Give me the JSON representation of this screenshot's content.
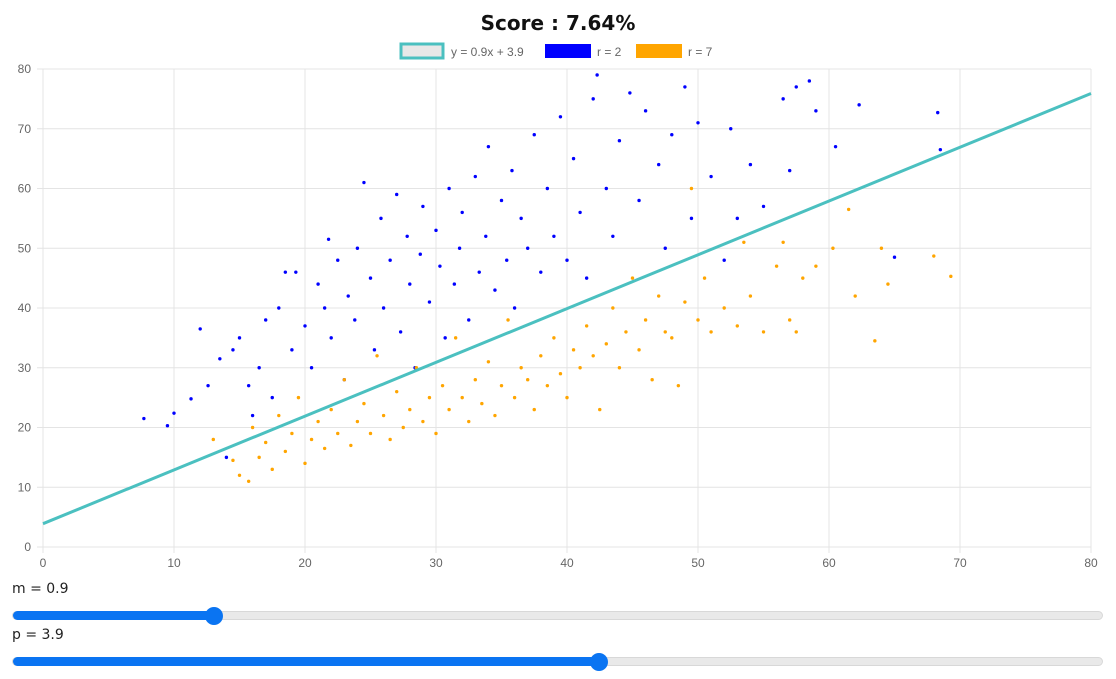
{
  "title": "Score : 7.64%",
  "chart_data": {
    "type": "scatter",
    "title": "Score : 7.64%",
    "xlim": [
      0,
      80
    ],
    "ylim": [
      0,
      80
    ],
    "xticks": [
      0,
      10,
      20,
      30,
      40,
      50,
      60,
      70,
      80
    ],
    "yticks": [
      0,
      10,
      20,
      30,
      40,
      50,
      60,
      70,
      80
    ],
    "grid": true,
    "legend": "top",
    "line": {
      "name": "y = 0.9x + 3.9",
      "m": 0.9,
      "p": 3.9,
      "color": "#4bc0c0"
    },
    "series": [
      {
        "name": "r = 2",
        "color": "#0000ff",
        "points": [
          [
            7.7,
            21.5
          ],
          [
            9.5,
            20.3
          ],
          [
            10,
            22.4
          ],
          [
            11.3,
            24.8
          ],
          [
            12,
            36.5
          ],
          [
            12.6,
            27
          ],
          [
            13.5,
            31.5
          ],
          [
            14,
            15
          ],
          [
            14.5,
            33
          ],
          [
            15,
            35
          ],
          [
            15.7,
            27
          ],
          [
            16,
            22
          ],
          [
            16.5,
            30
          ],
          [
            17,
            38
          ],
          [
            17.5,
            25
          ],
          [
            18,
            40
          ],
          [
            18.5,
            46
          ],
          [
            19,
            33
          ],
          [
            19.3,
            46
          ],
          [
            20,
            37
          ],
          [
            20.5,
            30
          ],
          [
            21,
            44
          ],
          [
            21.5,
            40
          ],
          [
            21.8,
            51.5
          ],
          [
            22,
            35
          ],
          [
            22.5,
            48
          ],
          [
            23,
            28
          ],
          [
            23.3,
            42
          ],
          [
            23.8,
            38
          ],
          [
            24,
            50
          ],
          [
            24.5,
            61
          ],
          [
            25,
            45
          ],
          [
            25.3,
            33
          ],
          [
            25.8,
            55
          ],
          [
            26,
            40
          ],
          [
            26.5,
            48
          ],
          [
            27,
            59
          ],
          [
            27.3,
            36
          ],
          [
            27.8,
            52
          ],
          [
            28,
            44
          ],
          [
            28.4,
            30
          ],
          [
            28.8,
            49
          ],
          [
            29,
            57
          ],
          [
            29.5,
            41
          ],
          [
            30,
            53
          ],
          [
            30.3,
            47
          ],
          [
            30.7,
            35
          ],
          [
            31,
            60
          ],
          [
            31.4,
            44
          ],
          [
            31.8,
            50
          ],
          [
            32,
            56
          ],
          [
            32.5,
            38
          ],
          [
            33,
            62
          ],
          [
            33.3,
            46
          ],
          [
            33.8,
            52
          ],
          [
            34,
            67
          ],
          [
            34.5,
            43
          ],
          [
            35,
            58
          ],
          [
            35.4,
            48
          ],
          [
            35.8,
            63
          ],
          [
            36,
            40
          ],
          [
            36.5,
            55
          ],
          [
            37,
            50
          ],
          [
            37.5,
            69
          ],
          [
            38,
            46
          ],
          [
            38.5,
            60
          ],
          [
            39,
            52
          ],
          [
            39.5,
            72
          ],
          [
            40,
            48
          ],
          [
            40.5,
            65
          ],
          [
            41,
            56
          ],
          [
            41.5,
            45
          ],
          [
            42,
            75
          ],
          [
            42.3,
            79
          ],
          [
            43,
            60
          ],
          [
            43.5,
            52
          ],
          [
            44,
            68
          ],
          [
            44.8,
            76
          ],
          [
            45.5,
            58
          ],
          [
            46,
            73
          ],
          [
            47,
            64
          ],
          [
            47.5,
            50
          ],
          [
            48,
            69
          ],
          [
            49,
            77
          ],
          [
            49.5,
            55
          ],
          [
            50,
            71
          ],
          [
            51,
            62
          ],
          [
            52,
            48
          ],
          [
            52.5,
            70
          ],
          [
            53,
            55
          ],
          [
            54,
            64
          ],
          [
            55,
            57
          ],
          [
            56.5,
            75
          ],
          [
            57,
            63
          ],
          [
            57.5,
            77
          ],
          [
            58.5,
            78
          ],
          [
            59,
            73
          ],
          [
            60.5,
            67
          ],
          [
            62.3,
            74
          ],
          [
            65,
            48.5
          ],
          [
            68.3,
            72.7
          ],
          [
            68.5,
            66.5
          ]
        ]
      },
      {
        "name": "r = 7",
        "color": "#ffa500",
        "points": [
          [
            13,
            18
          ],
          [
            14.5,
            14.5
          ],
          [
            15,
            12
          ],
          [
            15.7,
            11
          ],
          [
            16,
            20
          ],
          [
            16.5,
            15
          ],
          [
            17,
            17.5
          ],
          [
            17.5,
            13
          ],
          [
            18,
            22
          ],
          [
            18.5,
            16
          ],
          [
            19,
            19
          ],
          [
            19.5,
            25
          ],
          [
            20,
            14
          ],
          [
            20.5,
            18
          ],
          [
            21,
            21
          ],
          [
            21.5,
            16.5
          ],
          [
            22,
            23
          ],
          [
            22.5,
            19
          ],
          [
            23,
            28
          ],
          [
            23.5,
            17
          ],
          [
            24,
            21
          ],
          [
            24.5,
            24
          ],
          [
            25,
            19
          ],
          [
            25.5,
            32
          ],
          [
            26,
            22
          ],
          [
            26.5,
            18
          ],
          [
            27,
            26
          ],
          [
            27.5,
            20
          ],
          [
            28,
            23
          ],
          [
            28.5,
            30
          ],
          [
            29,
            21
          ],
          [
            29.5,
            25
          ],
          [
            30,
            19
          ],
          [
            30.5,
            27
          ],
          [
            31,
            23
          ],
          [
            31.5,
            35
          ],
          [
            32,
            25
          ],
          [
            32.5,
            21
          ],
          [
            33,
            28
          ],
          [
            33.5,
            24
          ],
          [
            34,
            31
          ],
          [
            34.5,
            22
          ],
          [
            35,
            27
          ],
          [
            35.5,
            38
          ],
          [
            36,
            25
          ],
          [
            36.5,
            30
          ],
          [
            37,
            28
          ],
          [
            37.5,
            23
          ],
          [
            38,
            32
          ],
          [
            38.5,
            27
          ],
          [
            39,
            35
          ],
          [
            39.5,
            29
          ],
          [
            40,
            25
          ],
          [
            40.5,
            33
          ],
          [
            41,
            30
          ],
          [
            41.5,
            37
          ],
          [
            42,
            32
          ],
          [
            42.5,
            23
          ],
          [
            43,
            34
          ],
          [
            43.5,
            40
          ],
          [
            44,
            30
          ],
          [
            44.5,
            36
          ],
          [
            45,
            45
          ],
          [
            45.5,
            33
          ],
          [
            46,
            38
          ],
          [
            46.5,
            28
          ],
          [
            47,
            42
          ],
          [
            47.5,
            36
          ],
          [
            48,
            35
          ],
          [
            48.5,
            27
          ],
          [
            49,
            41
          ],
          [
            49.5,
            60
          ],
          [
            50,
            38
          ],
          [
            50.5,
            45
          ],
          [
            51,
            36
          ],
          [
            52,
            40
          ],
          [
            53,
            37
          ],
          [
            53.5,
            51
          ],
          [
            54,
            42
          ],
          [
            55,
            36
          ],
          [
            56,
            47
          ],
          [
            56.5,
            51
          ],
          [
            57,
            38
          ],
          [
            57.5,
            36
          ],
          [
            58,
            45
          ],
          [
            59,
            47
          ],
          [
            60.3,
            50
          ],
          [
            61.5,
            56.5
          ],
          [
            62,
            42
          ],
          [
            63.5,
            34.5
          ],
          [
            64,
            50
          ],
          [
            64.5,
            44
          ],
          [
            68,
            48.7
          ],
          [
            69.3,
            45.3
          ]
        ]
      }
    ]
  },
  "controls": {
    "m": {
      "label": "m = 0.9",
      "fraction": 0.185
    },
    "p": {
      "label": "p = 3.9",
      "fraction": 0.538
    },
    "accent": "#0a74f2"
  }
}
